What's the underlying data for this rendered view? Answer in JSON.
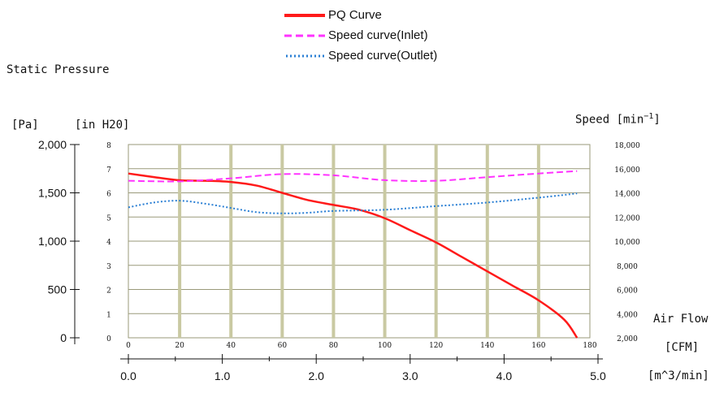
{
  "page": {
    "title": "Static Pressure"
  },
  "legend": {
    "items": [
      {
        "label": "PQ Curve",
        "color": "#ff1a1a",
        "style": "solid"
      },
      {
        "label": "Speed curve(Inlet)",
        "color": "#ff33ff",
        "style": "dashed"
      },
      {
        "label": "Speed curve(Outlet)",
        "color": "#2a7fd4",
        "style": "dotted"
      }
    ]
  },
  "axes": {
    "pa_unit": "[Pa]",
    "inh2o_unit": "[in H20]",
    "speed_unit_prefix": "Speed [min",
    "speed_unit_exp": "−1",
    "speed_unit_suffix": "]",
    "airflow_title": "Air Flow",
    "cfm_unit": "[CFM]",
    "m3_unit": "[m^3/min]"
  },
  "chart_data": {
    "type": "line",
    "title": "",
    "x_cfm": {
      "label": "[CFM]",
      "range": [
        0,
        180
      ],
      "ticks": [
        "0",
        "20",
        "40",
        "60",
        "80",
        "100",
        "120",
        "140",
        "160",
        "180"
      ]
    },
    "x_m3min": {
      "label": "[m^3/min]",
      "range": [
        0,
        5.0
      ],
      "ticks": [
        "0.0",
        "1.0",
        "2.0",
        "3.0",
        "4.0",
        "5.0"
      ]
    },
    "y_pa": {
      "label": "[Pa]",
      "range": [
        0,
        2000
      ],
      "ticks": [
        "0",
        "500",
        "1,000",
        "1,500",
        "2,000"
      ]
    },
    "y_inh2o": {
      "label": "[in H20]",
      "range": [
        0,
        8
      ],
      "ticks": [
        "0",
        "1",
        "2",
        "3",
        "4",
        "5",
        "6",
        "7",
        "8"
      ]
    },
    "y_speed": {
      "label": "Speed [min^-1]",
      "range": [
        2000,
        18000
      ],
      "ticks": [
        "2,000",
        "4,000",
        "6,000",
        "8,000",
        "10,000",
        "12,000",
        "14,000",
        "16,000",
        "18,000"
      ]
    },
    "grid": true,
    "legend_position": "top",
    "series": [
      {
        "name": "PQ Curve",
        "axis": "in H20",
        "color": "#ff1a1a",
        "style": "solid",
        "x": [
          0,
          10,
          20,
          30,
          40,
          50,
          60,
          70,
          80,
          90,
          100,
          110,
          120,
          130,
          140,
          150,
          160,
          170,
          175
        ],
        "y": [
          6.8,
          6.65,
          6.52,
          6.5,
          6.45,
          6.3,
          6.0,
          5.7,
          5.5,
          5.3,
          4.95,
          4.45,
          3.95,
          3.35,
          2.75,
          2.15,
          1.55,
          0.75,
          0.0
        ]
      },
      {
        "name": "Speed curve(Inlet)",
        "axis": "speed",
        "color": "#ff33ff",
        "style": "dashed",
        "x": [
          0,
          20,
          40,
          60,
          80,
          100,
          120,
          140,
          160,
          175
        ],
        "y": [
          15000,
          14950,
          15200,
          15550,
          15450,
          15050,
          15000,
          15300,
          15600,
          15800
        ]
      },
      {
        "name": "Speed curve(Outlet)",
        "axis": "speed",
        "color": "#2a7fd4",
        "style": "dotted",
        "x": [
          0,
          10,
          20,
          30,
          40,
          50,
          60,
          70,
          80,
          100,
          120,
          140,
          160,
          175
        ],
        "y": [
          12800,
          13200,
          13350,
          13100,
          12750,
          12400,
          12300,
          12350,
          12500,
          12600,
          12900,
          13200,
          13600,
          13950
        ]
      }
    ]
  }
}
